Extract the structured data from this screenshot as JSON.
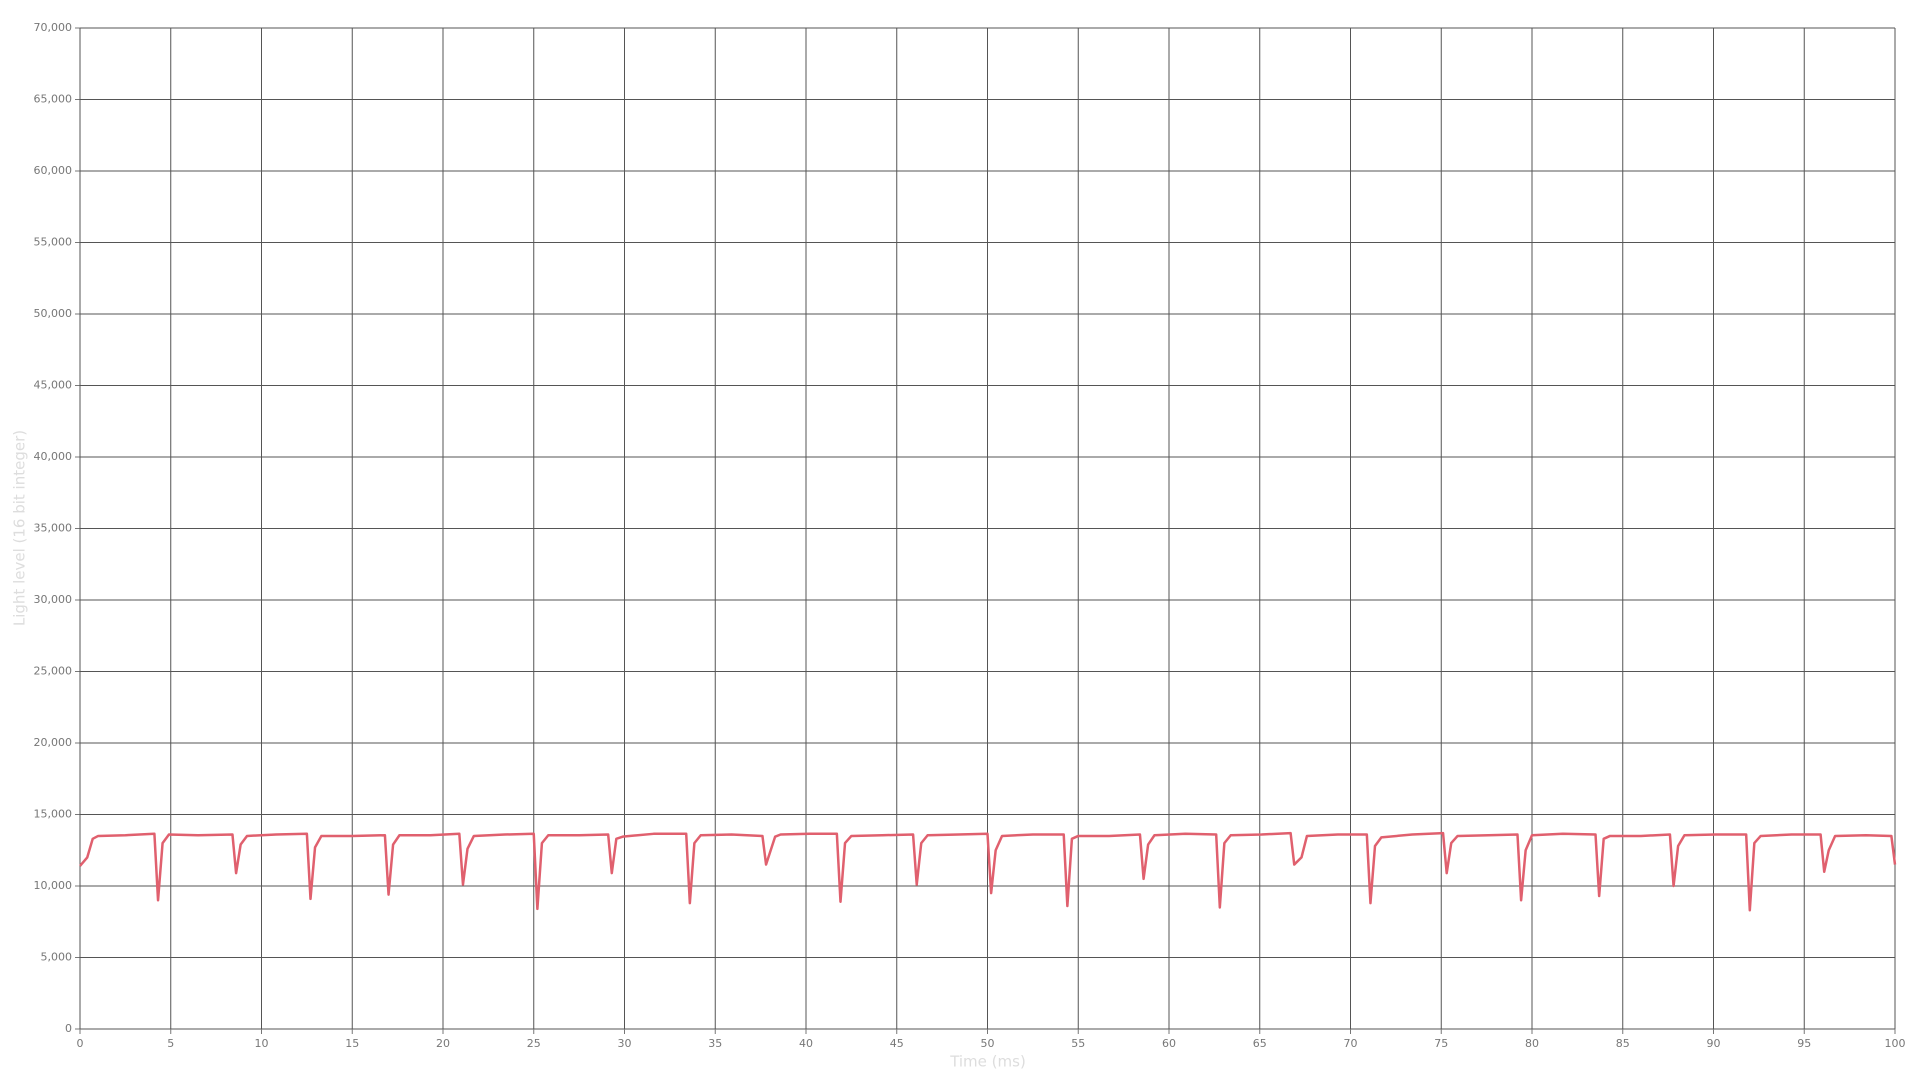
{
  "chart_data": {
    "type": "line",
    "x_label": "Time (ms)",
    "y_label": "Light level (16 bit integer)",
    "xlim": [
      0,
      100
    ],
    "ylim": [
      0,
      70000
    ],
    "xticks": [
      0,
      5,
      10,
      15,
      20,
      25,
      30,
      35,
      40,
      45,
      50,
      55,
      60,
      65,
      70,
      75,
      80,
      85,
      90,
      95,
      100
    ],
    "yticks": [
      0,
      {
        "value": 5000,
        "label": "5,000"
      },
      {
        "value": 10000,
        "label": "10,000"
      },
      {
        "value": 15000,
        "label": "15,000"
      },
      {
        "value": 20000,
        "label": "20,000"
      },
      {
        "value": 25000,
        "label": "25,000"
      },
      {
        "value": 30000,
        "label": "30,000"
      },
      {
        "value": 35000,
        "label": "35,000"
      },
      {
        "value": 40000,
        "label": "40,000"
      },
      {
        "value": 45000,
        "label": "45,000"
      },
      {
        "value": 50000,
        "label": "50,000"
      },
      {
        "value": 55000,
        "label": "55,000"
      },
      {
        "value": 60000,
        "label": "60,000"
      },
      {
        "value": 65000,
        "label": "65,000"
      },
      {
        "value": 70000,
        "label": "70,000"
      }
    ],
    "grid": true,
    "color": "#e0606e",
    "x": [
      0,
      0.4,
      0.7,
      1,
      2.5,
      4.1,
      4.3,
      4.55,
      4.9,
      6.5,
      8.4,
      8.6,
      8.85,
      9.2,
      10.8,
      12.5,
      12.7,
      12.95,
      13.3,
      15,
      16.8,
      17.0,
      17.25,
      17.6,
      19.3,
      20.9,
      21.1,
      21.35,
      21.7,
      23.4,
      25.0,
      25.2,
      25.45,
      25.8,
      27.5,
      29.1,
      29.3,
      29.55,
      29.9,
      31.6,
      33.4,
      33.6,
      33.85,
      34.2,
      35.9,
      37.6,
      37.8,
      38.3,
      38.6,
      40.2,
      41.7,
      41.9,
      42.15,
      42.5,
      44.2,
      45.9,
      46.1,
      46.35,
      46.7,
      48.4,
      50.0,
      50.2,
      50.45,
      50.8,
      52.5,
      54.2,
      54.4,
      54.65,
      55,
      56.7,
      58.4,
      58.6,
      58.85,
      59.2,
      60.9,
      62.6,
      62.8,
      63.05,
      63.4,
      65.1,
      66.7,
      66.9,
      67.3,
      67.6,
      69.3,
      70.9,
      71.1,
      71.35,
      71.7,
      73.4,
      75.1,
      75.3,
      75.55,
      75.9,
      77.6,
      79.2,
      79.4,
      79.65,
      80.0,
      81.7,
      83.5,
      83.7,
      83.95,
      84.3,
      86,
      87.6,
      87.8,
      88.05,
      88.4,
      90.1,
      91.8,
      92.0,
      92.25,
      92.6,
      94.3,
      95.9,
      96.1,
      96.35,
      96.7,
      98.4,
      99.8,
      100
    ],
    "values": [
      11400,
      12000,
      13300,
      13500,
      13550,
      13650,
      9000,
      13000,
      13600,
      13550,
      13600,
      10900,
      12900,
      13500,
      13600,
      13650,
      9100,
      12700,
      13500,
      13500,
      13550,
      9400,
      12900,
      13550,
      13550,
      13650,
      10100,
      12600,
      13500,
      13600,
      13650,
      8400,
      13000,
      13550,
      13550,
      13600,
      10900,
      13300,
      13450,
      13650,
      13650,
      8800,
      13000,
      13550,
      13600,
      13500,
      11500,
      13450,
      13600,
      13650,
      13650,
      8900,
      13000,
      13500,
      13550,
      13600,
      10100,
      13000,
      13550,
      13600,
      13650,
      9500,
      12500,
      13500,
      13600,
      13600,
      8600,
      13300,
      13500,
      13500,
      13600,
      10500,
      12900,
      13550,
      13650,
      13600,
      8500,
      13000,
      13550,
      13600,
      13700,
      11500,
      12000,
      13500,
      13600,
      13600,
      8800,
      12800,
      13400,
      13600,
      13700,
      10900,
      13000,
      13500,
      13550,
      13600,
      9000,
      12500,
      13550,
      13650,
      13600,
      9300,
      13300,
      13500,
      13500,
      13600,
      10000,
      12800,
      13550,
      13600,
      13600,
      8300,
      13000,
      13500,
      13600,
      13600,
      11000,
      12500,
      13500,
      13550,
      13500,
      11500
    ]
  }
}
